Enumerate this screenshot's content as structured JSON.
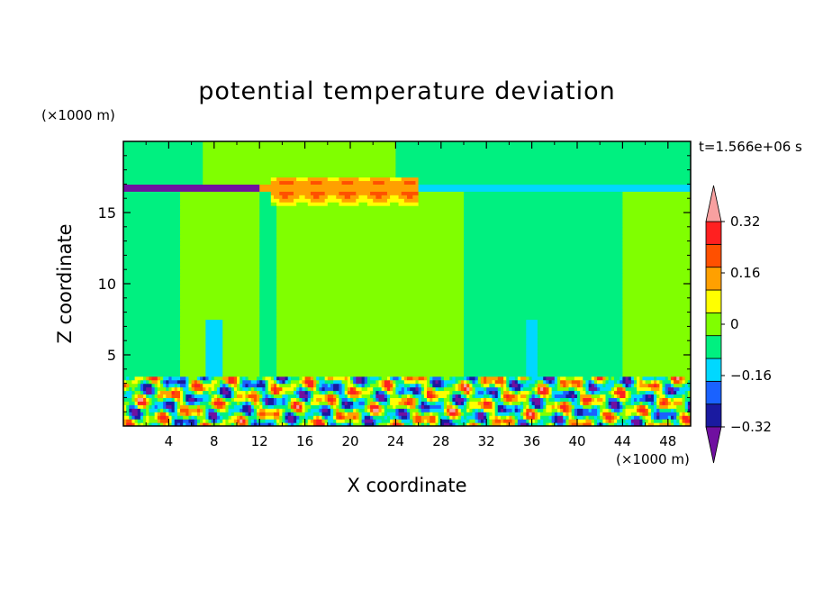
{
  "chart_data": {
    "type": "heatmap",
    "title": "potential temperature deviation",
    "xlabel": "X coordinate",
    "ylabel": "Z coordinate",
    "x_multiplier": "(×1000 m)",
    "y_multiplier": "(×1000 m)",
    "time_label": "t=1.566e+06 s",
    "xlim": [
      0,
      50
    ],
    "ylim": [
      0,
      20
    ],
    "xticks": [
      4,
      8,
      12,
      16,
      20,
      24,
      28,
      32,
      36,
      40,
      44,
      48
    ],
    "xtick_labels": [
      "4",
      "8",
      "12",
      "16",
      "20",
      "24",
      "28",
      "32",
      "36",
      "40",
      "44",
      "48"
    ],
    "yticks": [
      5,
      10,
      15
    ],
    "ytick_labels": [
      "5",
      "10",
      "15"
    ],
    "colorbar": {
      "levels": [
        -0.4,
        -0.32,
        -0.24,
        -0.16,
        -0.08,
        0,
        0.08,
        0.16,
        0.24,
        0.32,
        0.4
      ],
      "labels": [
        "0.32",
        "0.16",
        "0",
        "−0.16",
        "−0.32"
      ],
      "label_values": [
        0.32,
        0.16,
        0,
        -0.16,
        -0.32
      ],
      "colors": [
        "#7010a0",
        "#1a1aa0",
        "#1a62ff",
        "#00d8ff",
        "#00f080",
        "#80ff00",
        "#ffff00",
        "#ffa000",
        "#ff5000",
        "#ff2020",
        "#f8a0a0"
      ]
    },
    "regions": {
      "background": 0.04,
      "upper_band_z": 16.7,
      "boundary_layer_top_z": 3.6,
      "warm_columns": [
        [
          5,
          12
        ],
        [
          13.5,
          25
        ],
        [
          25,
          30
        ],
        [
          44,
          50
        ]
      ],
      "cold_columns": [
        [
          0,
          4
        ],
        [
          25,
          26
        ],
        [
          36,
          44
        ]
      ]
    }
  }
}
